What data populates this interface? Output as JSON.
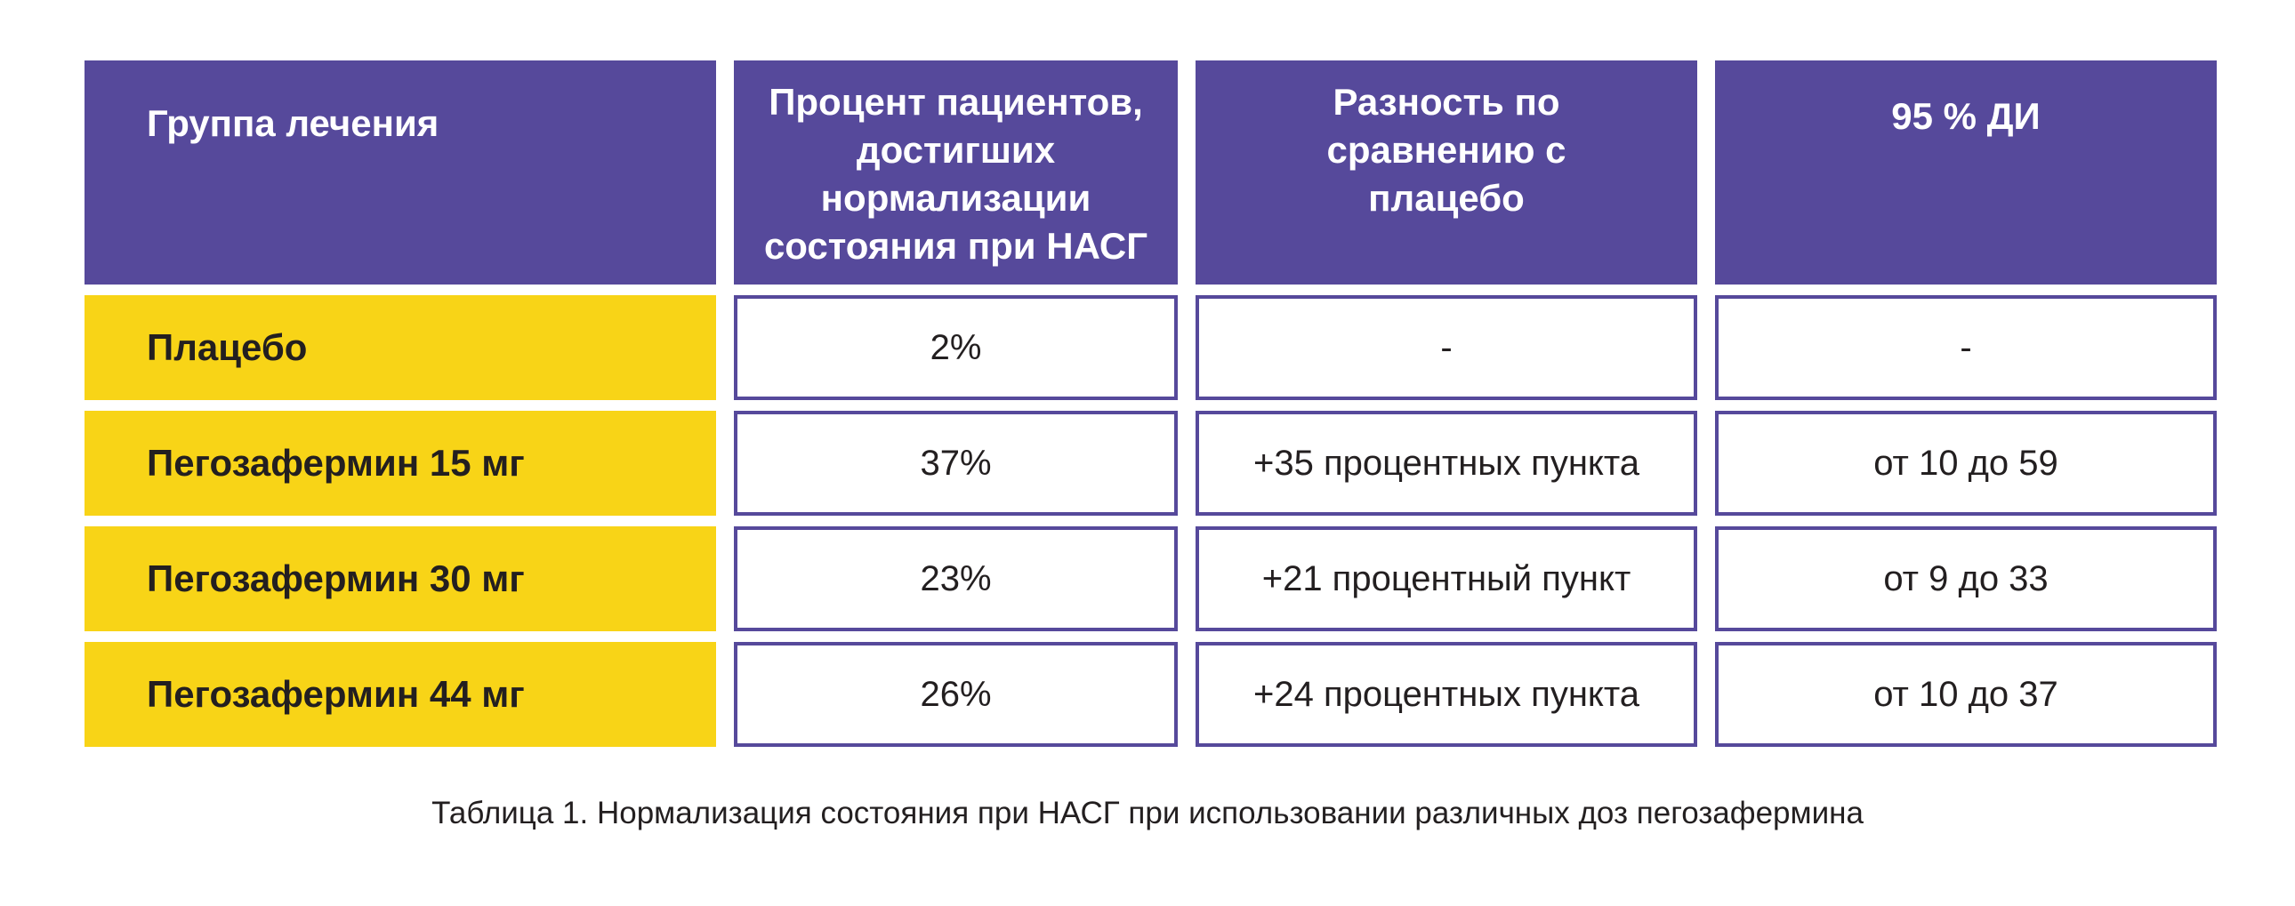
{
  "table": {
    "headers": [
      "Группа лечения",
      "Процент пациентов, достигших нормализации состояния при НАСГ",
      "Разность по сравнению с плацебо",
      "95 % ДИ"
    ],
    "rows": [
      {
        "group": "Плацебо",
        "percent": "2%",
        "diff": "-",
        "ci": "-"
      },
      {
        "group": "Пегозафермин 15 мг",
        "percent": "37%",
        "diff": "+35 процентных пункта",
        "ci": "от 10 до 59"
      },
      {
        "group": "Пегозафермин 30 мг",
        "percent": "23%",
        "diff": "+21 процентный пункт",
        "ci": "от 9 до 33"
      },
      {
        "group": "Пегозафермин 44 мг",
        "percent": "26%",
        "diff": "+24 процентных пункта",
        "ci": "от 10 до 37"
      }
    ]
  },
  "caption": "Таблица 1. Нормализация состояния при НАСГ при использовании различных доз пегозафермина",
  "colors": {
    "header_bg": "#56499b",
    "group_bg": "#f8d417",
    "border": "#56499b",
    "text": "#231f20"
  }
}
